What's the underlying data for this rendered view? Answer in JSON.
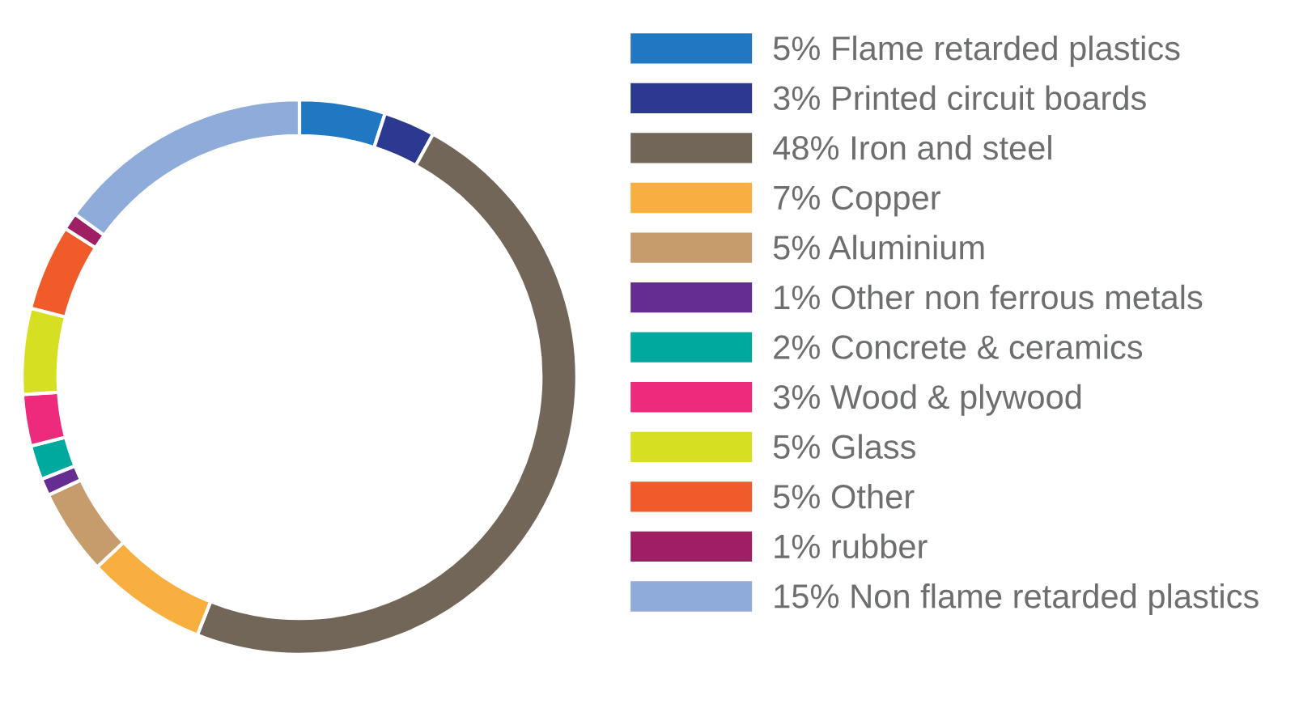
{
  "chart_data": {
    "type": "donut",
    "categories": [
      "Flame retarded plastics",
      "Printed circuit boards",
      "Iron and steel",
      "Copper",
      "Aluminium",
      "Other non ferrous metals",
      "Concrete & ceramics",
      "Wood & plywood",
      "Glass",
      "Other",
      "rubber",
      "Non flame retarded plastics"
    ],
    "values": [
      5,
      3,
      48,
      7,
      5,
      1,
      2,
      3,
      5,
      5,
      1,
      15
    ],
    "colors": [
      "#1f78c1",
      "#2b3990",
      "#726658",
      "#f9ae40",
      "#c69c6d",
      "#662d91",
      "#00a99d",
      "#ed2a7b",
      "#d7df23",
      "#f15a29",
      "#9e1f63",
      "#8fabd9"
    ],
    "value_labels": [
      "5%",
      "3%",
      "48%",
      "7%",
      "5%",
      "1%",
      "2%",
      "3%",
      "5%",
      "5%",
      "1%",
      "15%"
    ],
    "legend": "right"
  }
}
